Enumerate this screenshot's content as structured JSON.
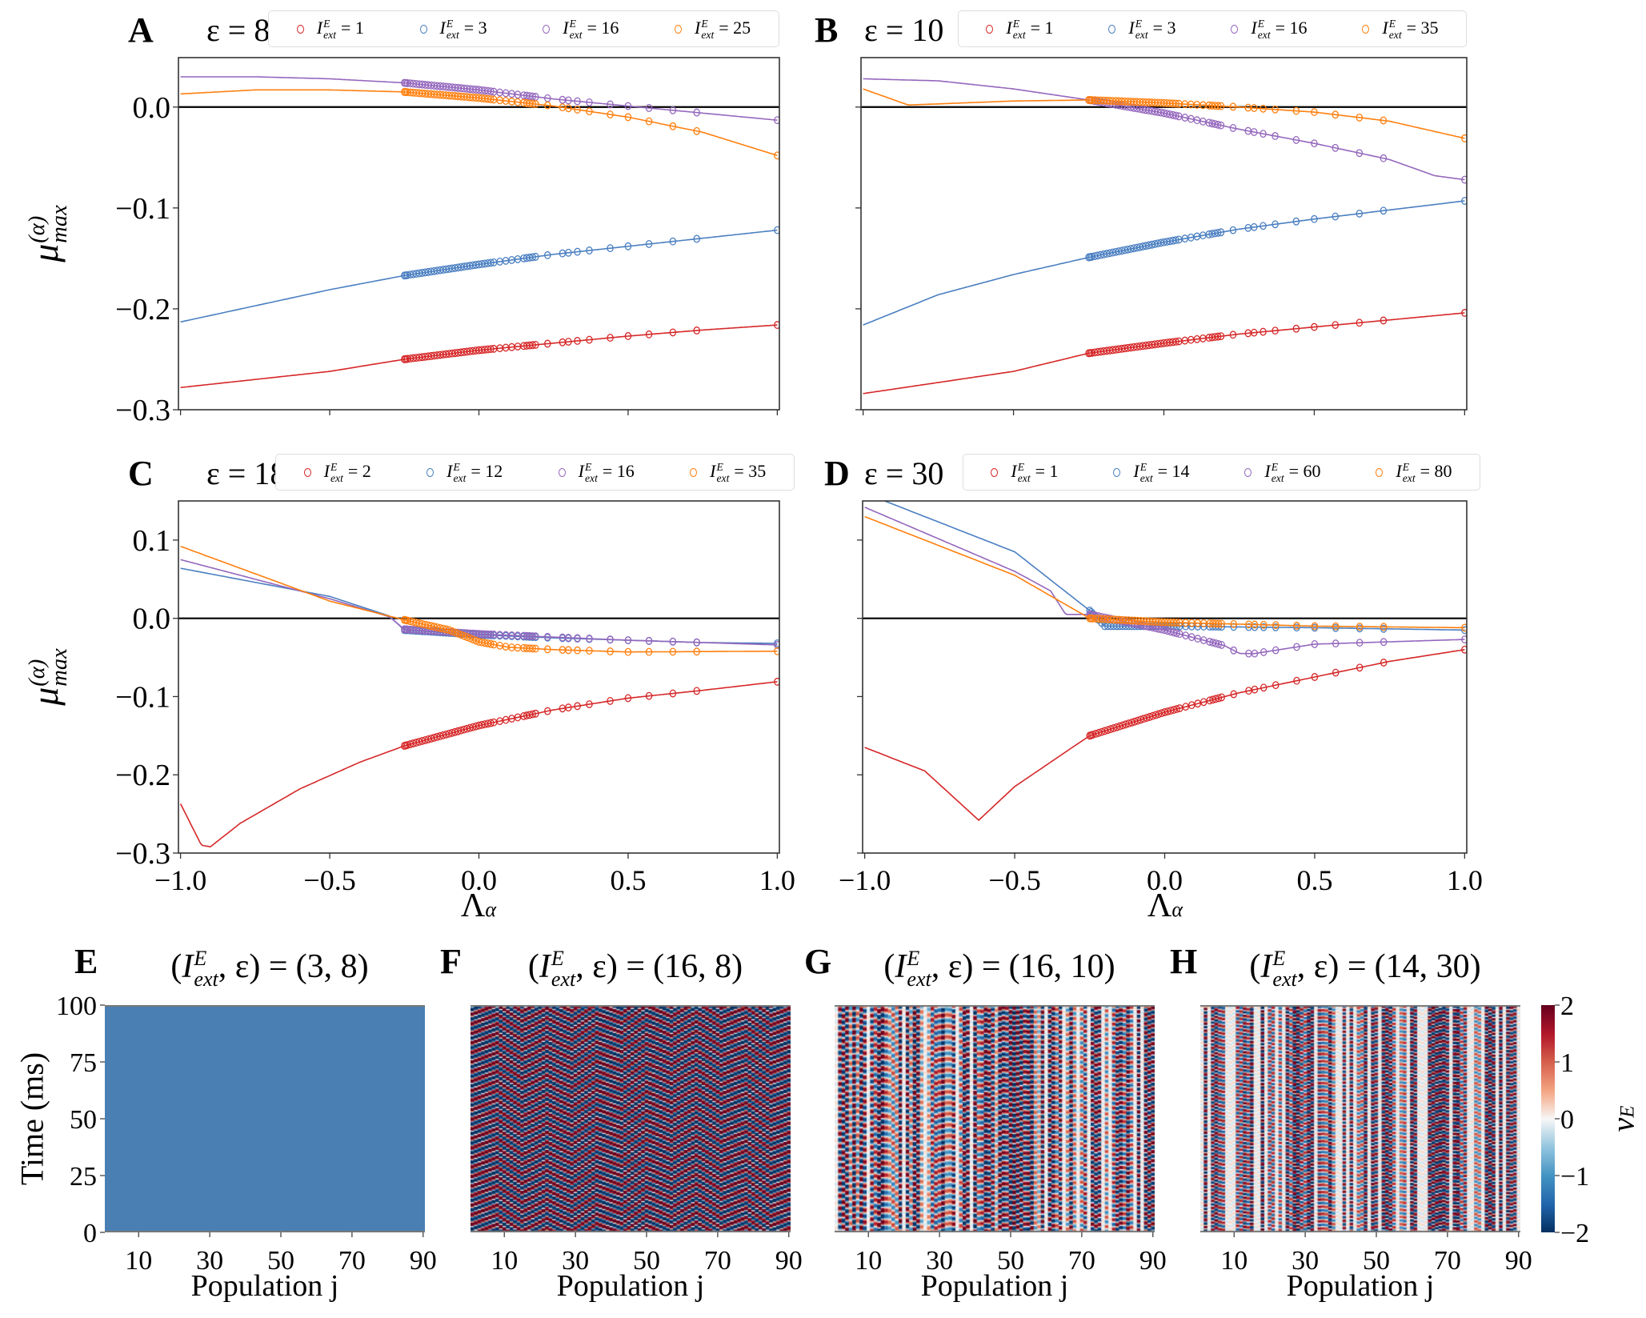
{
  "line_label": {
    "symbol": "I",
    "sup": "E",
    "sub": "ext"
  },
  "ylabel": {
    "base": "μ",
    "sup": "(α)",
    "sub": "max"
  },
  "xlabel": {
    "base": "Λ",
    "sub": "α"
  },
  "chart_data": [
    {
      "type": "line",
      "letter": "A",
      "title": "ε = 8",
      "xlim": [
        -1.0,
        1.0
      ],
      "ylim": [
        -0.3,
        0.049
      ],
      "yticks": [
        0.0,
        -0.1,
        -0.2,
        -0.3
      ],
      "ytick_labels": [
        "0.0",
        "−0.1",
        "−0.2",
        "−0.3"
      ],
      "xticks": [
        -1.0,
        -0.5,
        0.0,
        0.5,
        1.0
      ],
      "xtick_labels": [],
      "hline": 0.0,
      "legend": "top",
      "series": [
        {
          "value": "= 1",
          "color": "#d62728",
          "x": [
            -1,
            -0.5,
            -0.25,
            0,
            0.25,
            0.5,
            0.75,
            1
          ],
          "y": [
            -0.278,
            -0.262,
            -0.25,
            -0.241,
            -0.234,
            -0.227,
            -0.221,
            -0.216
          ]
        },
        {
          "value": "= 3",
          "color": "#4a7fc1",
          "x": [
            -1,
            -0.75,
            -0.5,
            -0.25,
            0,
            0.25,
            0.5,
            0.75,
            1
          ],
          "y": [
            -0.213,
            -0.197,
            -0.181,
            -0.167,
            -0.156,
            -0.146,
            -0.138,
            -0.13,
            -0.122
          ]
        },
        {
          "value": "= 16",
          "color": "#9467bd",
          "x": [
            -1,
            -0.75,
            -0.5,
            -0.25,
            0,
            0.25,
            0.5,
            0.75,
            1
          ],
          "y": [
            0.03,
            0.03,
            0.028,
            0.024,
            0.017,
            0.008,
            0.001,
            -0.006,
            -0.013
          ]
        },
        {
          "value": "= 25",
          "color": "#ff7f0e",
          "x": [
            -1,
            -0.75,
            -0.5,
            -0.25,
            0,
            0.25,
            0.5,
            0.75,
            1
          ],
          "y": [
            0.013,
            0.017,
            0.017,
            0.015,
            0.009,
            0.001,
            -0.01,
            -0.025,
            -0.048
          ]
        }
      ]
    },
    {
      "type": "line",
      "letter": "B",
      "title": "ε = 10",
      "xlim": [
        -1.0,
        1.0
      ],
      "ylim": [
        -0.3,
        0.049
      ],
      "yticks": [
        0.0,
        -0.1,
        -0.2,
        -0.3
      ],
      "ytick_labels": [],
      "xticks": [
        -1.0,
        -0.5,
        0.0,
        0.5,
        1.0
      ],
      "xtick_labels": [],
      "hline": 0.0,
      "legend": "top",
      "series": [
        {
          "value": "= 1",
          "color": "#d62728",
          "x": [
            -1,
            -0.5,
            -0.25,
            0,
            0.25,
            0.5,
            0.75,
            1
          ],
          "y": [
            -0.284,
            -0.262,
            -0.244,
            -0.234,
            -0.225,
            -0.218,
            -0.211,
            -0.204
          ]
        },
        {
          "value": "= 3",
          "color": "#4a7fc1",
          "x": [
            -1,
            -0.75,
            -0.5,
            -0.25,
            0,
            0.25,
            0.5,
            0.75,
            1
          ],
          "y": [
            -0.216,
            -0.186,
            -0.166,
            -0.149,
            -0.134,
            -0.121,
            -0.111,
            -0.102,
            -0.093
          ]
        },
        {
          "value": "= 16",
          "color": "#9467bd",
          "x": [
            -1,
            -0.75,
            -0.5,
            -0.25,
            0,
            0.25,
            0.5,
            0.75,
            0.9,
            1
          ],
          "y": [
            0.028,
            0.026,
            0.018,
            0.007,
            -0.006,
            -0.022,
            -0.036,
            -0.052,
            -0.068,
            -0.072
          ]
        },
        {
          "value": "= 35",
          "color": "#ff7f0e",
          "x": [
            -1,
            -0.85,
            -0.5,
            -0.25,
            0,
            0.25,
            0.5,
            0.75,
            1
          ],
          "y": [
            0.018,
            0.002,
            0.006,
            0.007,
            0.004,
            0.0,
            -0.005,
            -0.014,
            -0.031
          ]
        }
      ]
    },
    {
      "type": "line",
      "letter": "C",
      "title": "ε = 18",
      "xlim": [
        -1.0,
        1.0
      ],
      "ylim": [
        -0.3,
        0.15
      ],
      "yticks": [
        0.1,
        0.0,
        -0.1,
        -0.2,
        -0.3
      ],
      "ytick_labels": [
        "0.1",
        "0.0",
        "−0.1",
        "−0.2",
        "−0.3"
      ],
      "xticks": [
        -1.0,
        -0.5,
        0.0,
        0.5,
        1.0
      ],
      "xtick_labels": [
        "−1.0",
        "−0.5",
        "0.0",
        "0.5",
        "1.0"
      ],
      "hline": 0.0,
      "legend": "top",
      "series": [
        {
          "value": "= 2",
          "color": "#d62728",
          "x": [
            -1,
            -0.93,
            -0.9,
            -0.8,
            -0.6,
            -0.4,
            -0.25,
            0,
            0.25,
            0.5,
            0.75,
            1
          ],
          "y": [
            -0.237,
            -0.29,
            -0.292,
            -0.262,
            -0.218,
            -0.184,
            -0.163,
            -0.137,
            -0.117,
            -0.102,
            -0.092,
            -0.081
          ]
        },
        {
          "value": "= 12",
          "color": "#4a7fc1",
          "x": [
            -1,
            -0.5,
            -0.3,
            -0.25,
            0,
            0.25,
            0.5,
            0.75,
            1
          ],
          "y": [
            0.064,
            0.028,
            0.003,
            -0.015,
            -0.021,
            -0.025,
            -0.028,
            -0.031,
            -0.032
          ]
        },
        {
          "value": "= 16",
          "color": "#9467bd",
          "x": [
            -1,
            -0.5,
            -0.3,
            -0.25,
            0,
            0.5,
            1
          ],
          "y": [
            0.075,
            0.025,
            0.002,
            -0.014,
            -0.02,
            -0.028,
            -0.034
          ]
        },
        {
          "value": "= 35",
          "color": "#ff7f0e",
          "x": [
            -1,
            -0.5,
            -0.25,
            -0.1,
            0,
            0.1,
            0.25,
            0.5,
            1
          ],
          "y": [
            0.092,
            0.022,
            -0.002,
            -0.015,
            -0.03,
            -0.037,
            -0.04,
            -0.043,
            -0.042
          ]
        }
      ]
    },
    {
      "type": "line",
      "letter": "D",
      "title": "ε = 30",
      "xlim": [
        -1.0,
        1.0
      ],
      "ylim": [
        -0.3,
        0.15
      ],
      "yticks": [
        0.1,
        0.0,
        -0.1,
        -0.2,
        -0.3
      ],
      "ytick_labels": [],
      "xticks": [
        -1.0,
        -0.5,
        0.0,
        0.5,
        1.0
      ],
      "xtick_labels": [
        "−1.0",
        "−0.5",
        "0.0",
        "0.5",
        "1.0"
      ],
      "hline": 0.0,
      "legend": "top",
      "series": [
        {
          "value": "= 1",
          "color": "#d62728",
          "x": [
            -1,
            -0.8,
            -0.62,
            -0.5,
            -0.25,
            0,
            0.25,
            0.5,
            0.75,
            1
          ],
          "y": [
            -0.165,
            -0.195,
            -0.258,
            -0.215,
            -0.15,
            -0.12,
            -0.095,
            -0.075,
            -0.055,
            -0.04
          ]
        },
        {
          "value": "= 14",
          "color": "#4a7fc1",
          "x": [
            -1,
            -0.5,
            -0.25,
            -0.2,
            0,
            0.5,
            1
          ],
          "y": [
            0.16,
            0.085,
            0.01,
            -0.01,
            -0.01,
            -0.012,
            -0.015
          ]
        },
        {
          "value": "= 60",
          "color": "#9467bd",
          "x": [
            -1,
            -0.5,
            -0.38,
            -0.33,
            -0.25,
            0,
            0.2,
            0.25,
            0.3,
            0.5,
            0.75,
            1
          ],
          "y": [
            0.142,
            0.06,
            0.035,
            0.005,
            0.005,
            -0.015,
            -0.035,
            -0.045,
            -0.045,
            -0.033,
            -0.03,
            -0.027
          ]
        },
        {
          "value": "= 80",
          "color": "#ff7f0e",
          "x": [
            -1,
            -0.5,
            -0.25,
            0,
            0.5,
            1
          ],
          "y": [
            0.13,
            0.055,
            0.0,
            -0.005,
            -0.01,
            -0.012
          ]
        }
      ]
    }
  ],
  "marker_lambda": [
    -0.25,
    -0.245,
    -0.24,
    -0.23,
    -0.22,
    -0.21,
    -0.2,
    -0.19,
    -0.18,
    -0.17,
    -0.16,
    -0.15,
    -0.14,
    -0.13,
    -0.12,
    -0.11,
    -0.1,
    -0.09,
    -0.08,
    -0.07,
    -0.06,
    -0.05,
    -0.04,
    -0.03,
    -0.02,
    -0.01,
    0,
    0.01,
    0.02,
    0.03,
    0.04,
    0.05,
    0.07,
    0.09,
    0.11,
    0.13,
    0.15,
    0.16,
    0.17,
    0.18,
    0.19,
    0.23,
    0.28,
    0.3,
    0.33,
    0.37,
    0.44,
    0.5,
    0.57,
    0.65,
    0.73,
    1.0
  ],
  "heatmaps": {
    "type": "heatmap",
    "title_lhs": {
      "open": "(",
      "symbol": "I",
      "sup": "E",
      "sub": "ext",
      "rest": ", ε) ="
    },
    "ylabel": "Time (ms)",
    "xlabel": "Population j",
    "xticks": [
      10,
      30,
      50,
      70,
      90
    ],
    "xtick_labels": [
      "10",
      "30",
      "50",
      "70",
      "90"
    ],
    "yticks": [
      0,
      25,
      50,
      75,
      100
    ],
    "ytick_labels": [
      "0",
      "25",
      "50",
      "75",
      "100"
    ],
    "xlim": [
      1,
      90
    ],
    "ylim": [
      0,
      100
    ],
    "panels": [
      {
        "letter": "E",
        "value": "(3, 8)",
        "pattern": "uniform",
        "fill_color": "#4a7fb4"
      },
      {
        "letter": "F",
        "value": "(16, 8)",
        "pattern": "traveling-chevrons"
      },
      {
        "letter": "G",
        "value": "(16, 10)",
        "pattern": "vertical-stripes"
      },
      {
        "letter": "H",
        "value": "(14, 30)",
        "pattern": "dense-vertical-stripes"
      }
    ],
    "colorbar": {
      "label_base": "v",
      "label_sub": "E",
      "range": [
        -2,
        2
      ],
      "ticks": [
        "2",
        "1",
        "0",
        "−1",
        "−2"
      ],
      "colormap": "RdBu_r"
    }
  }
}
